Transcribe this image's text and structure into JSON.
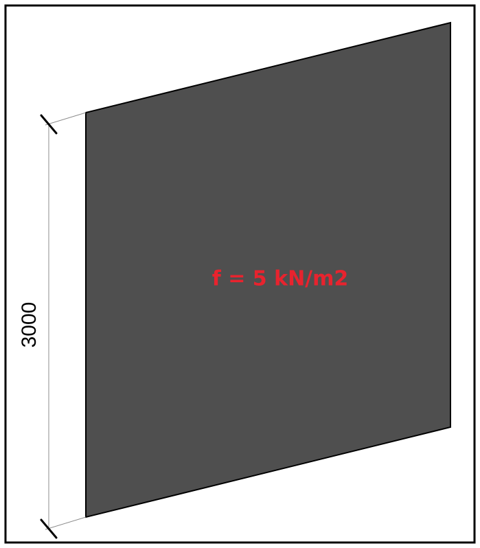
{
  "diagram": {
    "dimension_label": "3000",
    "load_label": "f = 5 kN/m2"
  },
  "colors": {
    "frame": "#000000",
    "panel_fill": "#4f4f4f",
    "panel_stroke": "#000000",
    "dimension_line": "#8c8c8c",
    "tick": "#000000",
    "load_text": "#e8232e",
    "dimension_text": "#000000"
  }
}
